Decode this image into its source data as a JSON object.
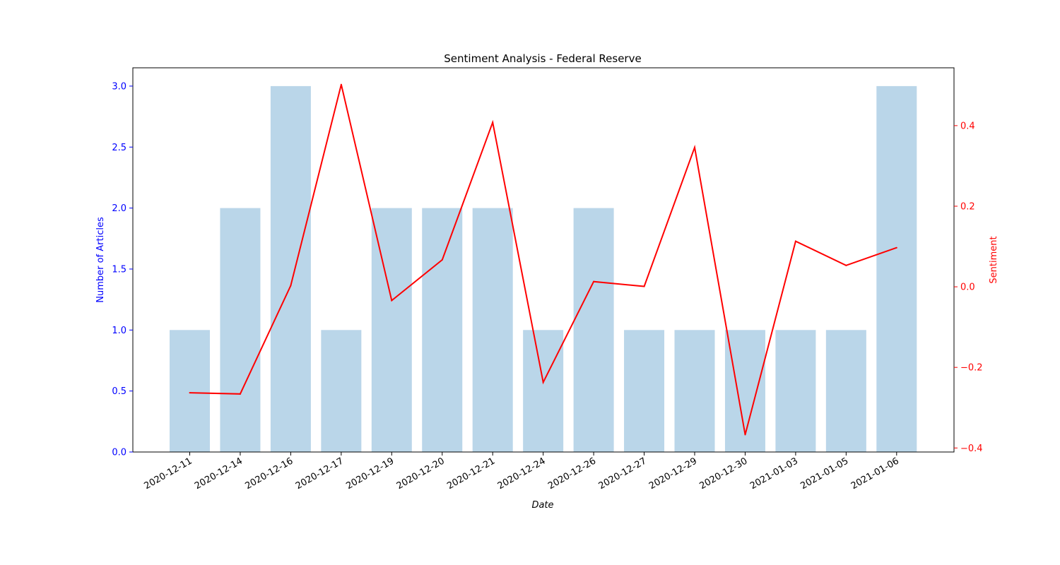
{
  "chart_data": {
    "type": "bar",
    "title": "Sentiment Analysis - Federal Reserve",
    "xlabel": "Date",
    "ylabel": "Number of Articles",
    "y2label": "Sentiment",
    "categories": [
      "2020-12-11",
      "2020-12-14",
      "2020-12-16",
      "2020-12-17",
      "2020-12-19",
      "2020-12-20",
      "2020-12-21",
      "2020-12-24",
      "2020-12-26",
      "2020-12-27",
      "2020-12-29",
      "2020-12-30",
      "2021-01-03",
      "2021-01-05",
      "2021-01-06"
    ],
    "ylim": [
      0,
      3.15
    ],
    "y2lim": [
      -0.41,
      0.5435
    ],
    "yticks": [
      0.0,
      0.5,
      1.0,
      1.5,
      2.0,
      2.5,
      3.0
    ],
    "y2ticks": [
      -0.4,
      -0.2,
      0.0,
      0.2,
      0.4
    ],
    "grid": false,
    "series": [
      {
        "kind": "bar",
        "axis": "left",
        "values": [
          1,
          2,
          3,
          1,
          2,
          2,
          2,
          1,
          2,
          1,
          1,
          1,
          1,
          1,
          3
        ]
      },
      {
        "kind": "line",
        "axis": "right",
        "values": [
          -0.263,
          -0.266,
          0.003,
          0.502,
          -0.034,
          0.067,
          0.408,
          -0.237,
          0.013,
          0.001,
          0.346,
          -0.367,
          0.113,
          0.053,
          0.097
        ]
      }
    ]
  },
  "colors": {
    "bar": "#bad6e9",
    "line": "#ff0000",
    "left_axis": "#0000ff",
    "right_axis": "#ff0000",
    "axis": "#000000"
  }
}
